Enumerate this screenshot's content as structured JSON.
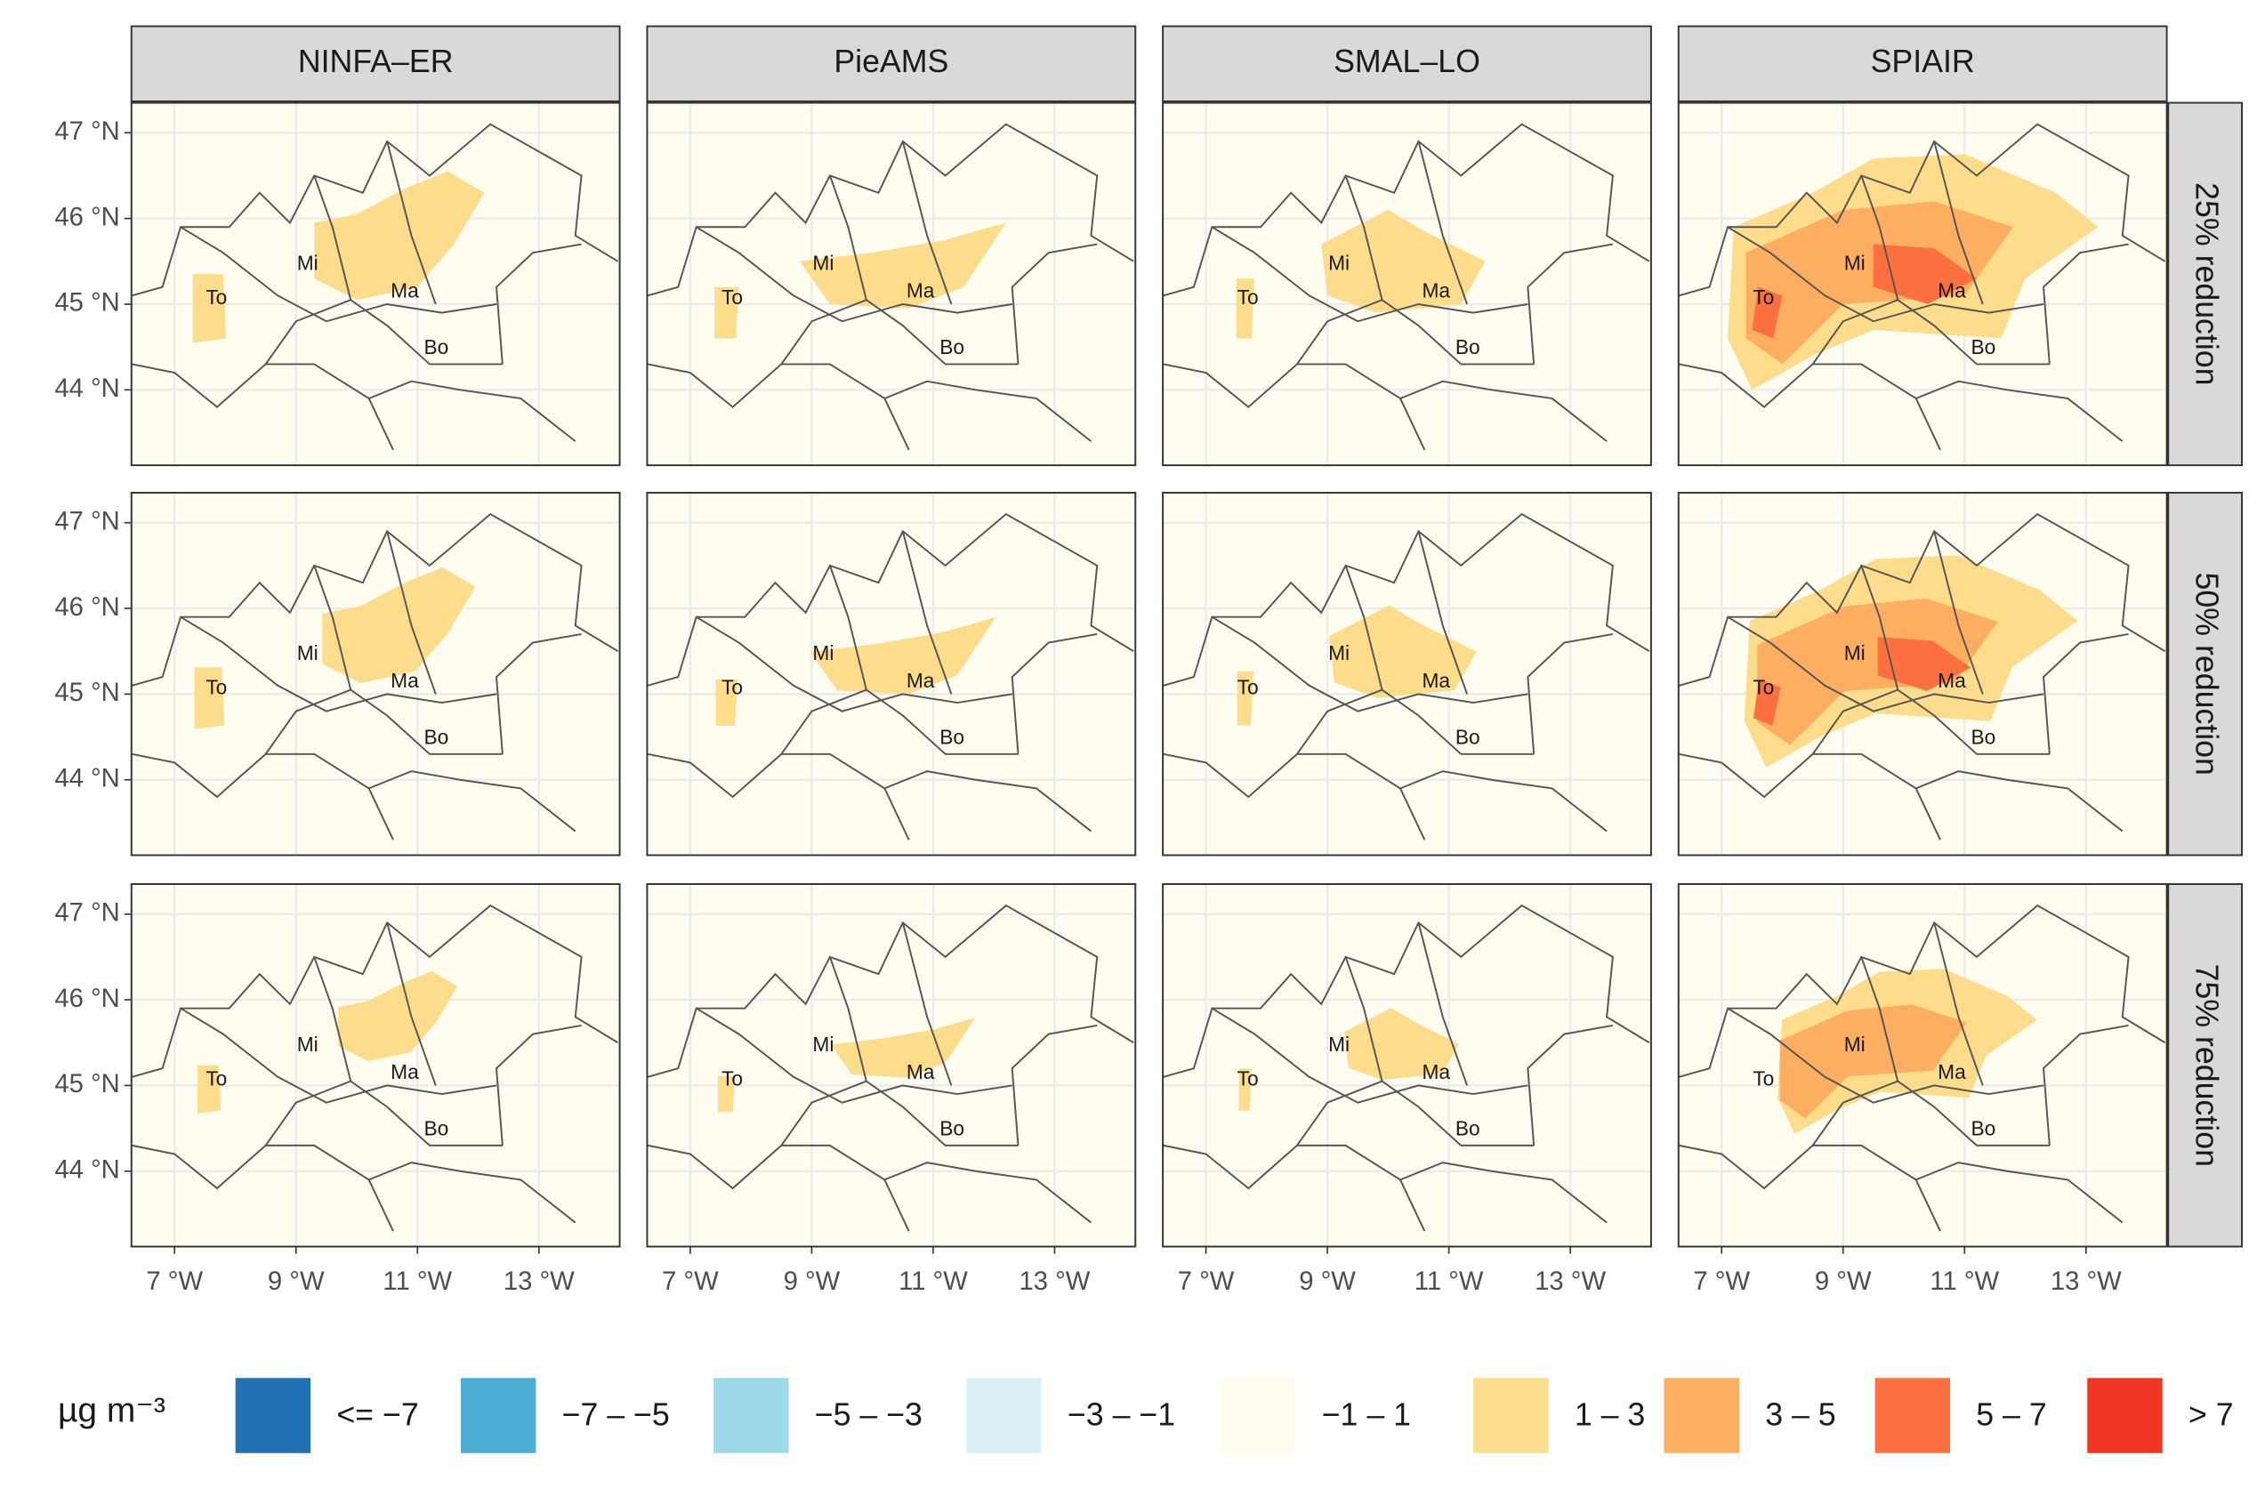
{
  "chart_data": {
    "type": "map",
    "columns": [
      "NINFA–ER",
      "PieAMS",
      "SMAL–LO",
      "SPIAIR"
    ],
    "rows": [
      "25% reduction",
      "50% reduction",
      "75% reduction"
    ],
    "cities": [
      "To",
      "Mi",
      "Ma",
      "Bo"
    ],
    "xlim": [
      6.29,
      14.33
    ],
    "ylim": [
      43.12,
      47.35
    ],
    "xticks": [
      {
        "value": 7,
        "label": "7 °W"
      },
      {
        "value": 9,
        "label": "9 °W"
      },
      {
        "value": 11,
        "label": "11 °W"
      },
      {
        "value": 13,
        "label": "13 °W"
      }
    ],
    "yticks": [
      {
        "value": 44,
        "label": "44 °N"
      },
      {
        "value": 45,
        "label": "45 °N"
      },
      {
        "value": 46,
        "label": "46 °N"
      },
      {
        "value": 47,
        "label": "47 °N"
      }
    ],
    "grid": true,
    "legend": {
      "title": "µg m⁻³",
      "labels": [
        "<= −7",
        "−7 – −5",
        "−5 – −3",
        "−3 – −1",
        "−1 – 1",
        "1 – 3",
        "3 – 5",
        "5 – 7",
        "> 7"
      ],
      "colors": [
        "#2171b5",
        "#4eaed3",
        "#9dd9ea",
        "#daf1f7",
        "#fffdf0",
        "#fddd8b",
        "#fdae61",
        "#fc6f3f",
        "#f03524"
      ]
    }
  }
}
